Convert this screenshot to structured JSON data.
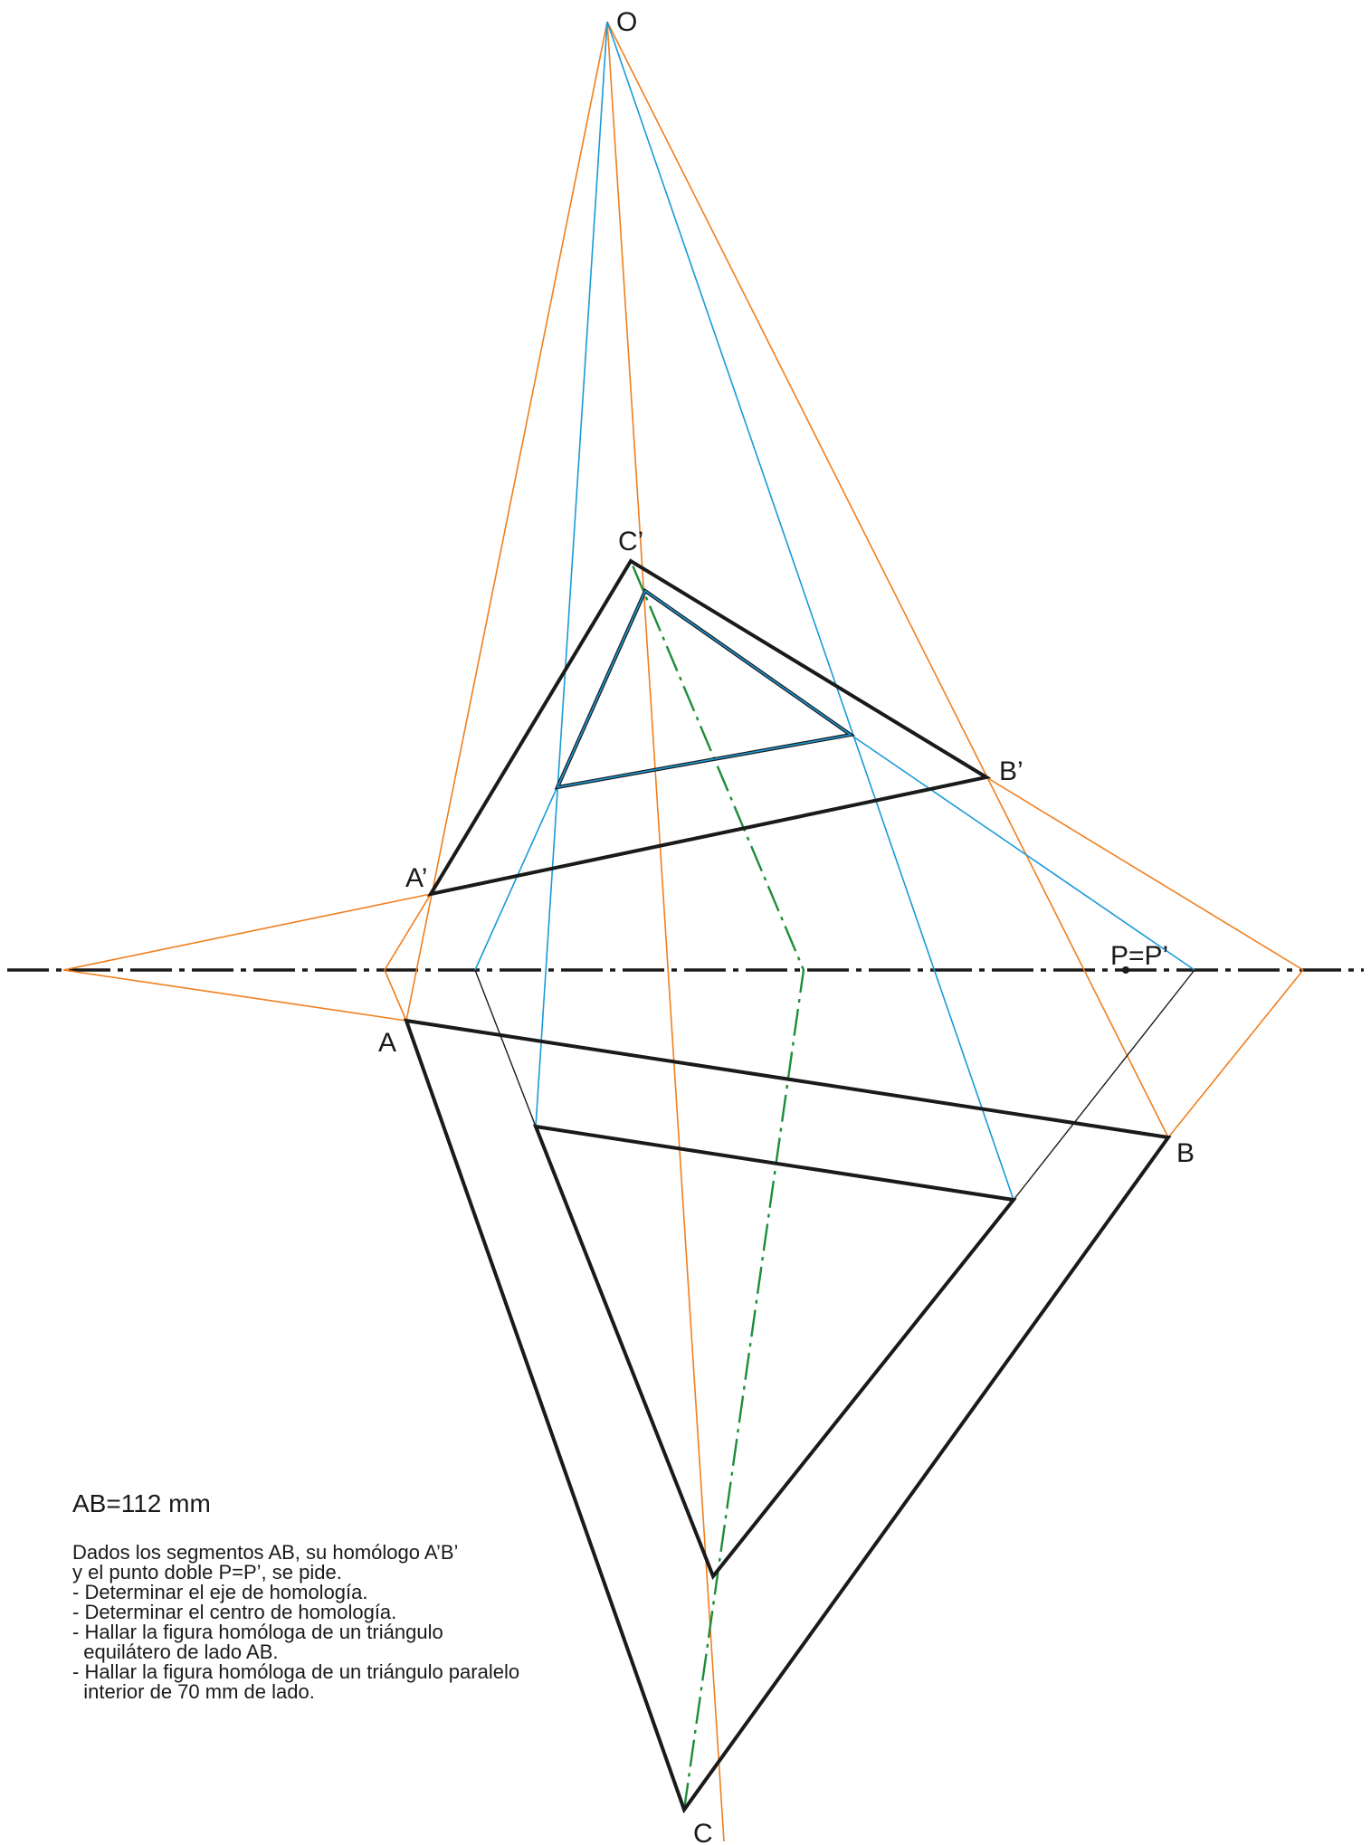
{
  "labels": {
    "O": "O",
    "A": "A",
    "B": "B",
    "C": "C",
    "A_prime": "A’",
    "B_prime": "B’",
    "C_prime": "C’",
    "P": "P=P’"
  },
  "statement": {
    "given": "AB=112 mm",
    "lines": [
      "Dados los segmentos AB, su homólogo A’B’",
      "y el punto doble P=P’, se pide.",
      "- Determinar el eje de homología.",
      "- Determinar el centro de homología.",
      "- Hallar la figura homóloga de un triángulo",
      "  equilátero de lado AB.",
      "- Hallar la figura homóloga de un triángulo paralelo",
      "  interior de 70 mm de lado."
    ]
  },
  "colors": {
    "figure": "#1a1a1a",
    "construction_orange": "#f07f1e",
    "construction_blue": "#1a9ad6",
    "axis_green": "#1e8c3a"
  }
}
